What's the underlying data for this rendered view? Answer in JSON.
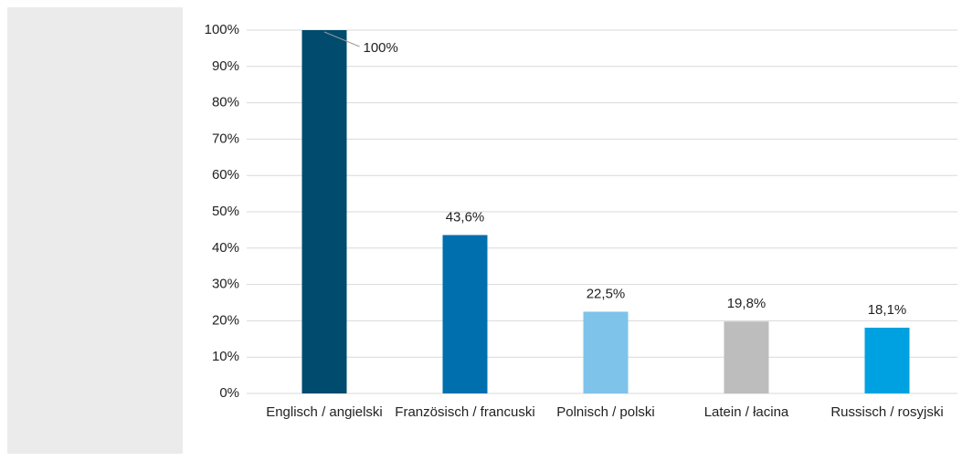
{
  "chart_data": {
    "type": "bar",
    "categories": [
      "Englisch / angielski",
      "Französisch / francuski",
      "Polnisch / polski",
      "Latein / łacina",
      "Russisch / rosyjski"
    ],
    "values": [
      100,
      43.6,
      22.5,
      19.8,
      18.1
    ],
    "value_labels": [
      "100%",
      "43,6%",
      "22,5%",
      "19,8%",
      "18,1%"
    ],
    "colors": [
      "#004b6e",
      "#006fae",
      "#7dc3ea",
      "#bdbdbd",
      "#00a1e1"
    ],
    "ylim": [
      0,
      100
    ],
    "yticks": [
      {
        "value": 0,
        "label": "0%"
      },
      {
        "value": 10,
        "label": "10%"
      },
      {
        "value": 20,
        "label": "20%"
      },
      {
        "value": 30,
        "label": "30%"
      },
      {
        "value": 40,
        "label": "40%"
      },
      {
        "value": 50,
        "label": "50%"
      },
      {
        "value": 60,
        "label": "60%"
      },
      {
        "value": 70,
        "label": "70%"
      },
      {
        "value": 80,
        "label": "80%"
      },
      {
        "value": 90,
        "label": "90%"
      },
      {
        "value": 100,
        "label": "100%"
      }
    ],
    "grid": true
  }
}
